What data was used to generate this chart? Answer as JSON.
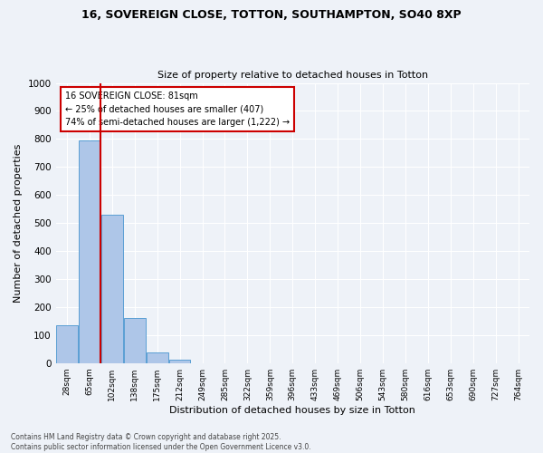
{
  "title1": "16, SOVEREIGN CLOSE, TOTTON, SOUTHAMPTON, SO40 8XP",
  "title2": "Size of property relative to detached houses in Totton",
  "xlabel": "Distribution of detached houses by size in Totton",
  "ylabel": "Number of detached properties",
  "categories": [
    "28sqm",
    "65sqm",
    "102sqm",
    "138sqm",
    "175sqm",
    "212sqm",
    "249sqm",
    "285sqm",
    "322sqm",
    "359sqm",
    "396sqm",
    "433sqm",
    "469sqm",
    "506sqm",
    "543sqm",
    "580sqm",
    "616sqm",
    "653sqm",
    "690sqm",
    "727sqm",
    "764sqm"
  ],
  "values": [
    135,
    795,
    530,
    162,
    37,
    12,
    0,
    0,
    0,
    0,
    0,
    0,
    0,
    0,
    0,
    0,
    0,
    0,
    0,
    0,
    0
  ],
  "bar_color": "#aec6e8",
  "bar_edgecolor": "#5a9fd4",
  "vline_color": "#cc0000",
  "annotation_text": "16 SOVEREIGN CLOSE: 81sqm\n← 25% of detached houses are smaller (407)\n74% of semi-detached houses are larger (1,222) →",
  "annotation_box_color": "#ffffff",
  "annotation_box_edgecolor": "#cc0000",
  "ylim": [
    0,
    1000
  ],
  "yticks": [
    0,
    100,
    200,
    300,
    400,
    500,
    600,
    700,
    800,
    900,
    1000
  ],
  "background_color": "#eef2f8",
  "fig_color": "#eef2f8",
  "grid_color": "#ffffff",
  "footer1": "Contains HM Land Registry data © Crown copyright and database right 2025.",
  "footer2": "Contains public sector information licensed under the Open Government Licence v3.0."
}
